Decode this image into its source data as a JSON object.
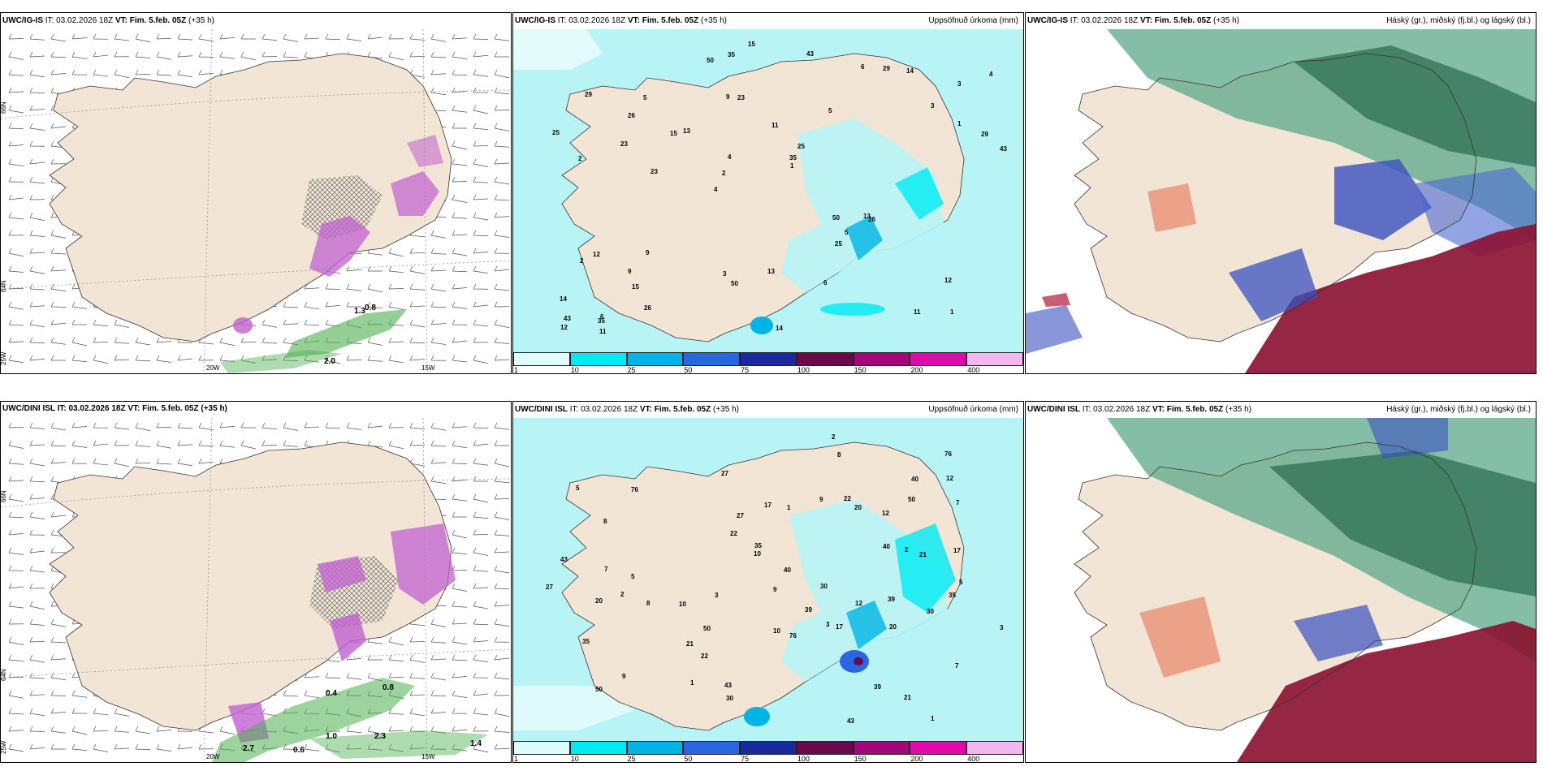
{
  "panels": [
    {
      "model": "UWC/IG-IS",
      "it_label": "IT:",
      "issue": "03.02.2026 18Z",
      "vt_label": "VT:",
      "valid": "Fim. 5.feb. 05Z",
      "lead": "(+35 h)",
      "title": ""
    },
    {
      "model": "UWC/IG-IS",
      "it_label": "IT:",
      "issue": "03.02.2026 18Z",
      "vt_label": "VT:",
      "valid": "Fim. 5.feb. 05Z",
      "lead": "(+35 h)",
      "title": "Uppsöfnuð úrkoma (mm)"
    },
    {
      "model": "UWC/IG-IS",
      "it_label": "IT:",
      "issue": "03.02.2026 18Z",
      "vt_label": "VT:",
      "valid": "Fim. 5.feb. 05Z",
      "lead": "(+35 h)",
      "title": "Háský (gr.), miðský (fj.bl.) og lágský (bl.)"
    },
    {
      "model": "UWC/DINI ISL",
      "it_label": "IT:",
      "issue": "03.02.2026 18Z",
      "vt_label": "VT:",
      "valid": "Fim. 5.feb. 05Z",
      "lead": "(+35 h)",
      "title": ""
    },
    {
      "model": "UWC/DINI ISL",
      "it_label": "IT:",
      "issue": "03.02.2026 18Z",
      "vt_label": "VT:",
      "valid": "Fim. 5.feb. 05Z",
      "lead": "(+35 h)",
      "title": "Uppsöfnuð úrkoma (mm)"
    },
    {
      "model": "UWC/DINI ISL",
      "it_label": "IT:",
      "issue": "03.02.2026 18Z",
      "vt_label": "VT:",
      "valid": "Fim. 5.feb. 05Z",
      "lead": "(+35 h)",
      "title": "Háský (gr.), miðský (fj.bl.) og lágský (bl.)"
    }
  ],
  "graticule": {
    "lat_66": "66N",
    "lat_64": "64N",
    "lon_25": "25W",
    "lon_20": "20W",
    "lon_15": "15W"
  },
  "colorbar": {
    "labels": [
      "1",
      "10",
      "25",
      "50",
      "75",
      "100",
      "150",
      "200",
      "400"
    ],
    "colors": [
      "#dffcfc",
      "#00eaf2",
      "#00b4e6",
      "#2a66e0",
      "#1a2a9c",
      "#6a0a4a",
      "#a3087a",
      "#e00aa8",
      "#f3b6ee"
    ]
  },
  "precip_labels_top": [
    "1",
    "2",
    "3",
    "4",
    "5",
    "6",
    "9",
    "11",
    "12",
    "13",
    "14",
    "15",
    "23",
    "25",
    "26",
    "29",
    "35",
    "43",
    "50"
  ],
  "precip_labels_bottom": [
    "1",
    "2",
    "3",
    "5",
    "7",
    "8",
    "9",
    "10",
    "12",
    "17",
    "20",
    "21",
    "22",
    "27",
    "30",
    "35",
    "39",
    "40",
    "43",
    "50",
    "76"
  ],
  "wind_labels_top": [
    "0.8",
    "1.3",
    "2.0"
  ],
  "wind_labels_bottom": [
    "0.4",
    "0.6",
    "0.8",
    "1.0",
    "1.4",
    "2.3",
    "2.7"
  ],
  "colors": {
    "land": "#f2e5d6",
    "sea_precip": "#b8f4f6",
    "pink": "#c060d0",
    "green_snow": "#4caf50",
    "cloud_high": "#5ba88a",
    "cloud_mid": "#3a50c0",
    "cloud_low": "#8b1030"
  }
}
